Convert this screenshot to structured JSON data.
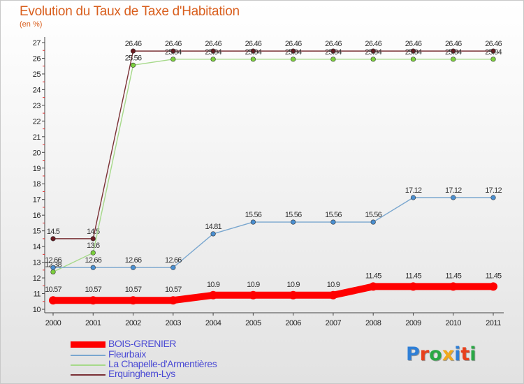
{
  "header": {
    "title": "Evolution du Taux de Taxe d'Habitation",
    "subtitle": "(en %)"
  },
  "logo": {
    "text": "Proxiti",
    "letter_colors": [
      "#2f7fd6",
      "#e8401c",
      "#2aa845",
      "#f0a81c",
      "#2f7fd6",
      "#e8401c",
      "#2aa845"
    ]
  },
  "chart_data": {
    "type": "line",
    "title": "Evolution du Taux de Taxe d'Habitation",
    "subtitle": "(en %)",
    "x": [
      "2000",
      "2001",
      "2002",
      "2003",
      "2004",
      "2005",
      "2006",
      "2007",
      "2008",
      "2009",
      "2010",
      "2011"
    ],
    "ylim": [
      10,
      27
    ],
    "yticks": [
      10,
      11,
      12,
      13,
      14,
      15,
      16,
      17,
      18,
      19,
      20,
      21,
      22,
      23,
      24,
      25,
      26,
      27
    ],
    "grid": false,
    "legend_position": "bottom-left",
    "series": [
      {
        "name": "BOIS-GRENIER",
        "color": "#ff0000",
        "emphasis": true,
        "values": [
          10.57,
          10.57,
          10.57,
          10.57,
          10.9,
          10.9,
          10.9,
          10.9,
          11.45,
          11.45,
          11.45,
          11.45
        ],
        "labels": [
          "10.57",
          "10.57",
          "10.57",
          "10.57",
          "10.9",
          "10.9",
          "10.9",
          "10.9",
          "11.45",
          "11.45",
          "11.45",
          "11.45"
        ]
      },
      {
        "name": "Fleurbaix",
        "color": "#7aa7cf",
        "marker_color": "#4a8fd1",
        "values": [
          12.66,
          12.66,
          12.66,
          12.66,
          14.81,
          15.56,
          15.56,
          15.56,
          15.56,
          17.12,
          17.12,
          17.12
        ],
        "labels": [
          "12.66",
          "12.66",
          "12.66",
          "12.66",
          "14.81",
          "15.56",
          "15.56",
          "15.56",
          "15.56",
          "17.12",
          "17.12",
          "17.12"
        ]
      },
      {
        "name": "La Chapelle-d'Armentières",
        "color": "#a6d98a",
        "marker_color": "#7ccf3e",
        "values": [
          12.38,
          13.6,
          25.56,
          25.94,
          25.94,
          25.94,
          25.94,
          25.94,
          25.94,
          25.94,
          25.94,
          25.94
        ],
        "labels": [
          "12.38",
          "13.6",
          "25.56",
          "25.94",
          "25.94",
          "25.94",
          "25.94",
          "25.94",
          "25.94",
          "25.94",
          "25.94",
          "25.94"
        ]
      },
      {
        "name": "Erquinghem-Lys",
        "color": "#7a3035",
        "marker_color": "#6b1b22",
        "values": [
          14.5,
          14.5,
          26.46,
          26.46,
          26.46,
          26.46,
          26.46,
          26.46,
          26.46,
          26.46,
          26.46,
          26.46
        ],
        "labels": [
          "14.5",
          "14.5",
          "26.46",
          "26.46",
          "26.46",
          "26.46",
          "26.46",
          "26.46",
          "26.46",
          "26.46",
          "26.46",
          "26.46"
        ]
      }
    ]
  }
}
